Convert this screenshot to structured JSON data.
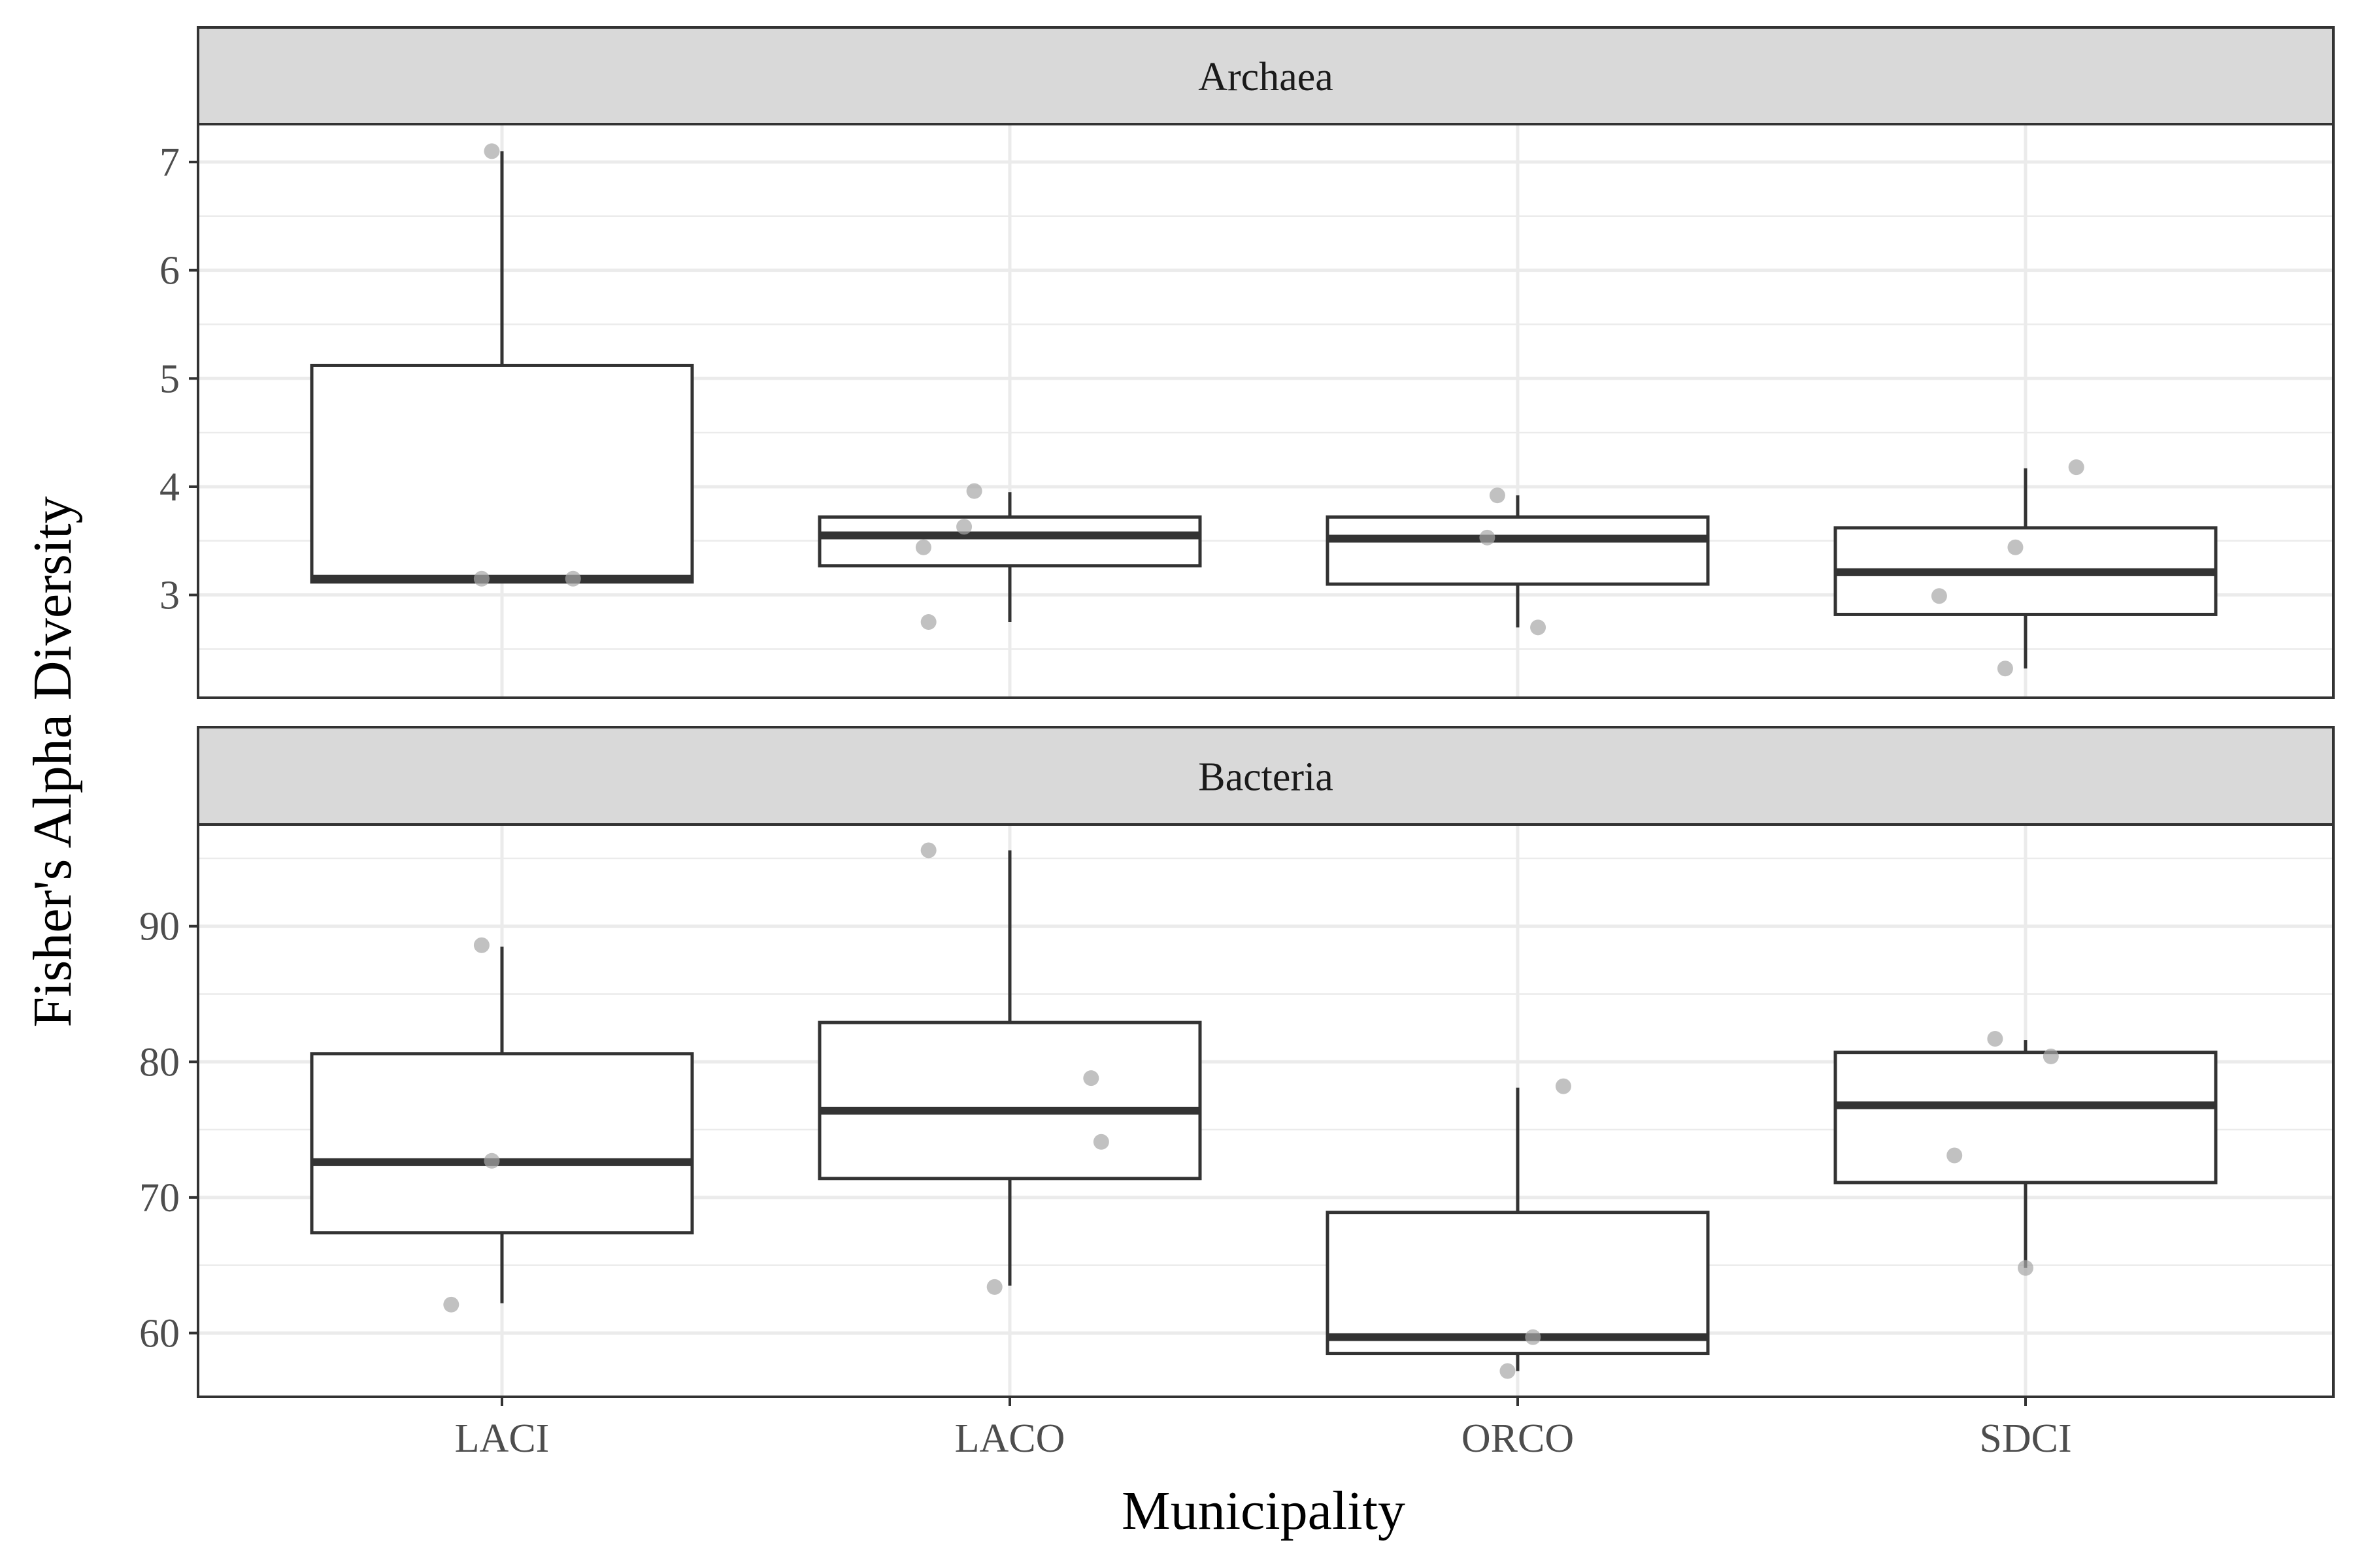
{
  "chart_data": {
    "type": "box",
    "xlabel": "Municipality",
    "ylabel": "Fisher's Alpha Diversity",
    "categories": [
      "LACI",
      "LACO",
      "ORCO",
      "SDCI"
    ],
    "grid": true,
    "legend": "none",
    "colors": {
      "strip_fill": "#d9d9d9",
      "box_stroke": "#333333",
      "points": "#a6a6a6",
      "grid": "#ebebeb"
    },
    "panels": [
      {
        "title": "Archaea",
        "ylim": [
          2.05,
          7.35
        ],
        "yticks": [
          3,
          4,
          5,
          6,
          7
        ],
        "boxes": [
          {
            "category": "LACI",
            "whisker_low": 3.12,
            "q1": 3.12,
            "median": 3.15,
            "q3": 5.12,
            "whisker_high": 7.1
          },
          {
            "category": "LACO",
            "whisker_low": 2.75,
            "q1": 3.27,
            "median": 3.55,
            "q3": 3.72,
            "whisker_high": 3.95
          },
          {
            "category": "ORCO",
            "whisker_low": 2.7,
            "q1": 3.1,
            "median": 3.52,
            "q3": 3.72,
            "whisker_high": 3.92
          },
          {
            "category": "SDCI",
            "whisker_low": 2.32,
            "q1": 2.82,
            "median": 3.21,
            "q3": 3.62,
            "whisker_high": 4.17
          }
        ],
        "points": [
          {
            "category": "LACI",
            "jitter": -0.02,
            "y": 7.1
          },
          {
            "category": "LACI",
            "jitter": -0.04,
            "y": 3.15
          },
          {
            "category": "LACI",
            "jitter": 0.14,
            "y": 3.15
          },
          {
            "category": "LACO",
            "jitter": -0.17,
            "y": 3.44
          },
          {
            "category": "LACO",
            "jitter": -0.09,
            "y": 3.63
          },
          {
            "category": "LACO",
            "jitter": -0.07,
            "y": 3.96
          },
          {
            "category": "LACO",
            "jitter": -0.16,
            "y": 2.75
          },
          {
            "category": "ORCO",
            "jitter": -0.06,
            "y": 3.53
          },
          {
            "category": "ORCO",
            "jitter": -0.04,
            "y": 3.92
          },
          {
            "category": "ORCO",
            "jitter": 0.04,
            "y": 2.7
          },
          {
            "category": "SDCI",
            "jitter": -0.17,
            "y": 2.99
          },
          {
            "category": "SDCI",
            "jitter": -0.02,
            "y": 3.44
          },
          {
            "category": "SDCI",
            "jitter": 0.1,
            "y": 4.18
          },
          {
            "category": "SDCI",
            "jitter": -0.04,
            "y": 2.32
          }
        ]
      },
      {
        "title": "Bacteria",
        "ylim": [
          55.3,
          97.5
        ],
        "yticks": [
          60,
          70,
          80,
          90
        ],
        "boxes": [
          {
            "category": "LACI",
            "whisker_low": 62.2,
            "q1": 67.4,
            "median": 72.6,
            "q3": 80.6,
            "whisker_high": 88.5
          },
          {
            "category": "LACO",
            "whisker_low": 63.5,
            "q1": 71.4,
            "median": 76.4,
            "q3": 82.9,
            "whisker_high": 95.6
          },
          {
            "category": "ORCO",
            "whisker_low": 57.2,
            "q1": 58.5,
            "median": 59.7,
            "q3": 68.9,
            "whisker_high": 78.1
          },
          {
            "category": "SDCI",
            "whisker_low": 64.8,
            "q1": 71.1,
            "median": 76.8,
            "q3": 80.7,
            "whisker_high": 81.6
          }
        ],
        "points": [
          {
            "category": "LACI",
            "jitter": -0.04,
            "y": 88.6
          },
          {
            "category": "LACI",
            "jitter": -0.02,
            "y": 72.7
          },
          {
            "category": "LACI",
            "jitter": -0.1,
            "y": 62.1
          },
          {
            "category": "LACO",
            "jitter": -0.16,
            "y": 95.6
          },
          {
            "category": "LACO",
            "jitter": 0.16,
            "y": 78.8
          },
          {
            "category": "LACO",
            "jitter": 0.18,
            "y": 74.1
          },
          {
            "category": "LACO",
            "jitter": -0.03,
            "y": 63.4
          },
          {
            "category": "ORCO",
            "jitter": 0.09,
            "y": 78.2
          },
          {
            "category": "ORCO",
            "jitter": 0.03,
            "y": 59.7
          },
          {
            "category": "ORCO",
            "jitter": -0.02,
            "y": 57.2
          },
          {
            "category": "SDCI",
            "jitter": -0.06,
            "y": 81.7
          },
          {
            "category": "SDCI",
            "jitter": 0.05,
            "y": 80.4
          },
          {
            "category": "SDCI",
            "jitter": -0.14,
            "y": 73.1
          },
          {
            "category": "SDCI",
            "jitter": 0.0,
            "y": 64.8
          }
        ]
      }
    ]
  }
}
